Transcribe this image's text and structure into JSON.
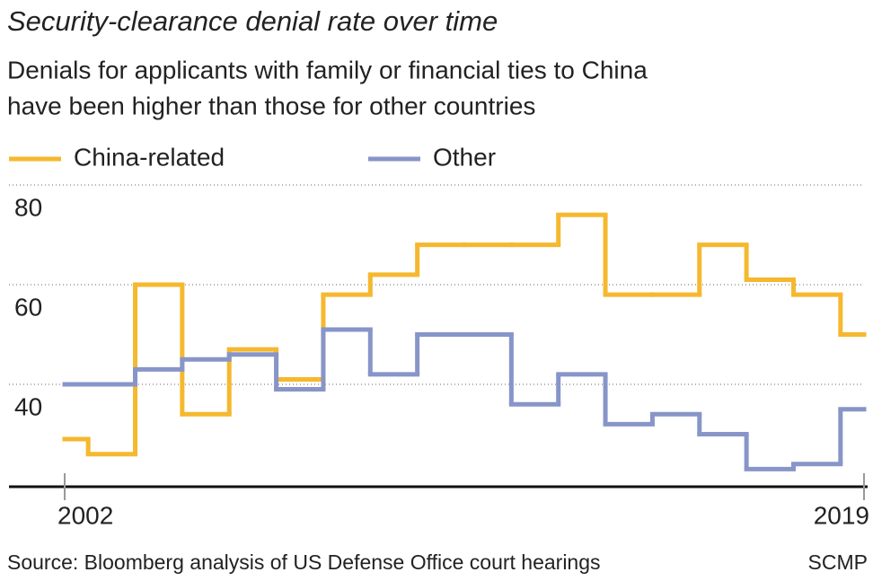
{
  "chart_data": {
    "type": "step",
    "title": "Security-clearance denial rate over time",
    "subtitle": [
      "Denials for applicants with family or financial ties to China",
      "have been higher than those for other countries"
    ],
    "source": "Source: Bloomberg analysis of US Defense Office court hearings",
    "credit": "SCMP",
    "x": [
      2002,
      2003,
      2004,
      2005,
      2006,
      2007,
      2008,
      2009,
      2010,
      2011,
      2012,
      2013,
      2014,
      2015,
      2016,
      2017,
      2018,
      2019
    ],
    "series": [
      {
        "name": "China-related",
        "color": "#f5b82e",
        "values": [
          29,
          26,
          60,
          34,
          47,
          41,
          58,
          62,
          68,
          68,
          68,
          74,
          58,
          58,
          68,
          61,
          58,
          50
        ]
      },
      {
        "name": "Other",
        "color": "#8795c8",
        "values": [
          40,
          40,
          43,
          45,
          46,
          39,
          51,
          42,
          50,
          50,
          36,
          42,
          32,
          34,
          30,
          23,
          24,
          35
        ]
      }
    ],
    "xlim": [
      2002,
      2019
    ],
    "xticks": [
      2002,
      2019
    ],
    "ylim": [
      20,
      80
    ],
    "yticks": [
      40,
      60,
      80
    ],
    "grid": true
  }
}
